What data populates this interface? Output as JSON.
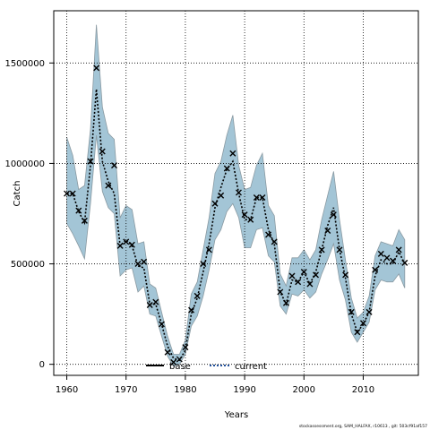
{
  "chart_data": {
    "type": "line",
    "title": "",
    "xlabel": "Years",
    "ylabel": "Catch",
    "xlim": [
      1957.8,
      2019.3
    ],
    "ylim": [
      -55000,
      1760000
    ],
    "x_ticks": [
      1960,
      1970,
      1980,
      1990,
      2000,
      2010
    ],
    "y_ticks": [
      0,
      500000,
      1000000,
      1500000
    ],
    "x_tick_labels": [
      "1960",
      "1970",
      "1980",
      "1990",
      "2000",
      "2010"
    ],
    "y_tick_labels": [
      "0",
      "500000",
      "1000000",
      "1500000"
    ],
    "grid": true,
    "legend_position": "bottom-center",
    "legend": [
      "base",
      "current"
    ],
    "years": [
      1960,
      1961,
      1962,
      1963,
      1964,
      1965,
      1966,
      1967,
      1968,
      1969,
      1970,
      1971,
      1972,
      1973,
      1974,
      1975,
      1976,
      1977,
      1978,
      1979,
      1980,
      1981,
      1982,
      1983,
      1984,
      1985,
      1986,
      1987,
      1988,
      1989,
      1990,
      1991,
      1992,
      1993,
      1994,
      1995,
      1996,
      1997,
      1998,
      1999,
      2000,
      2001,
      2002,
      2003,
      2004,
      2005,
      2006,
      2007,
      2008,
      2009,
      2010,
      2011,
      2012,
      2013,
      2014,
      2015,
      2016,
      2017
    ],
    "series": [
      {
        "name": "current",
        "style": "dotted",
        "color": "#000000",
        "values": [
          850000,
          850000,
          760000,
          705000,
          990000,
          1370000,
          1010000,
          910000,
          850000,
          590000,
          620000,
          590000,
          490000,
          480000,
          300000,
          300000,
          200000,
          90000,
          30000,
          20000,
          70000,
          250000,
          330000,
          460000,
          600000,
          780000,
          880000,
          970000,
          1010000,
          850000,
          720000,
          720000,
          830000,
          830000,
          670000,
          600000,
          360000,
          300000,
          420000,
          410000,
          460000,
          400000,
          460000,
          570000,
          690000,
          780000,
          570000,
          430000,
          250000,
          160000,
          200000,
          260000,
          440000,
          520000,
          500000,
          500000,
          560000,
          500000
        ]
      }
    ],
    "lower": [
      700000,
      650000,
      590000,
      525000,
      800000,
      1140000,
      860000,
      780000,
      750000,
      440000,
      470000,
      480000,
      360000,
      390000,
      250000,
      240000,
      140000,
      40000,
      -10000,
      0,
      50000,
      190000,
      240000,
      340000,
      470000,
      620000,
      670000,
      760000,
      800000,
      730000,
      580000,
      580000,
      670000,
      680000,
      540000,
      510000,
      290000,
      250000,
      350000,
      340000,
      370000,
      330000,
      360000,
      450000,
      520000,
      600000,
      420000,
      320000,
      160000,
      110000,
      160000,
      210000,
      370000,
      420000,
      410000,
      410000,
      450000,
      380000
    ],
    "upper": [
      1130000,
      1040000,
      870000,
      890000,
      1170000,
      1690000,
      1280000,
      1150000,
      1120000,
      730000,
      790000,
      770000,
      600000,
      610000,
      400000,
      380000,
      260000,
      140000,
      50000,
      50000,
      120000,
      350000,
      410000,
      570000,
      730000,
      950000,
      1010000,
      1140000,
      1240000,
      990000,
      870000,
      880000,
      990000,
      1050000,
      790000,
      740000,
      450000,
      390000,
      530000,
      530000,
      570000,
      520000,
      570000,
      720000,
      840000,
      960000,
      720000,
      520000,
      330000,
      230000,
      260000,
      340000,
      540000,
      610000,
      600000,
      590000,
      670000,
      620000
    ],
    "points_marker": "x",
    "points": [
      850000,
      850000,
      765000,
      715000,
      1010000,
      1475000,
      1060000,
      890000,
      990000,
      590000,
      610000,
      595000,
      500000,
      510000,
      295000,
      310000,
      200000,
      60000,
      10000,
      25000,
      85000,
      270000,
      340000,
      500000,
      570000,
      800000,
      840000,
      975000,
      1050000,
      855000,
      745000,
      720000,
      830000,
      830000,
      645000,
      610000,
      360000,
      305000,
      440000,
      410000,
      460000,
      400000,
      445000,
      570000,
      665000,
      745000,
      570000,
      445000,
      260000,
      160000,
      205000,
      260000,
      470000,
      550000,
      530000,
      515000,
      570000,
      505000
    ]
  },
  "colors": {
    "band_fill": "#a3c5d6",
    "band_edge": "#8a9aa2",
    "axis": "#000000",
    "grid": "#000000"
  },
  "footer_text": "stockassessment.org, SAM_HALFAX, r10613 , git: 503cf91af157"
}
